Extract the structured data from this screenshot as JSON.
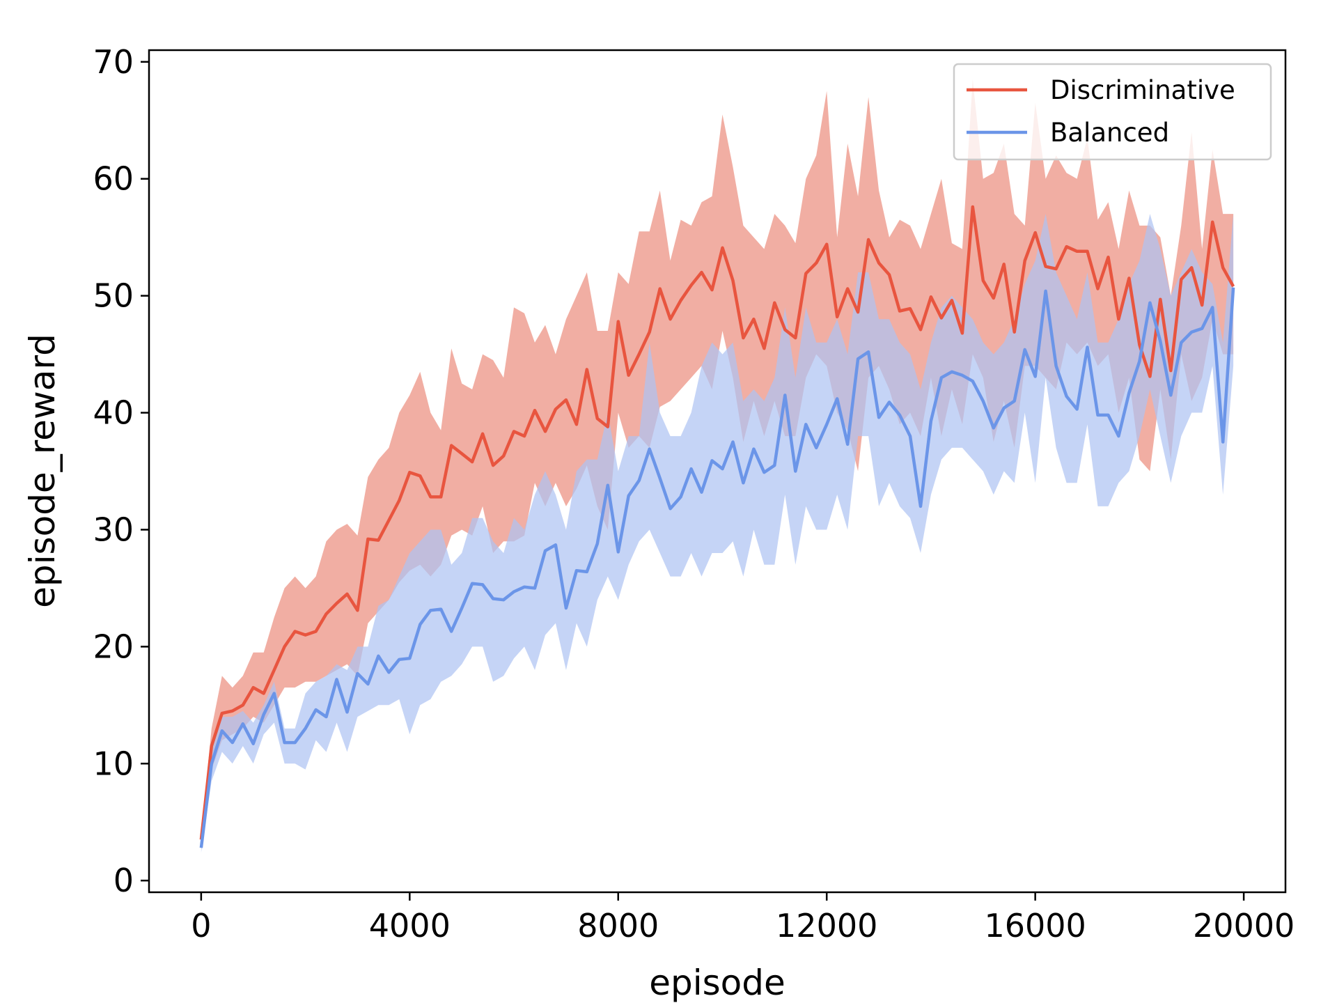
{
  "chart_data": {
    "type": "line",
    "title": "",
    "xlabel": "episode",
    "ylabel": "episode_reward",
    "xlim": [
      -1000,
      20800
    ],
    "ylim": [
      -1,
      71
    ],
    "xticks": [
      0,
      4000,
      8000,
      12000,
      16000,
      20000
    ],
    "yticks": [
      0,
      10,
      20,
      30,
      40,
      50,
      60,
      70
    ],
    "grid": false,
    "legend_position": "top-right",
    "x": [
      0,
      200,
      400,
      600,
      800,
      1000,
      1200,
      1400,
      1600,
      1800,
      2000,
      2200,
      2400,
      2600,
      2800,
      3000,
      3200,
      3400,
      3600,
      3800,
      4000,
      4200,
      4400,
      4600,
      4800,
      5000,
      5200,
      5400,
      5600,
      5800,
      6000,
      6200,
      6400,
      6600,
      6800,
      7000,
      7200,
      7400,
      7600,
      7800,
      8000,
      8200,
      8400,
      8600,
      8800,
      9000,
      9200,
      9400,
      9600,
      9800,
      10000,
      10200,
      10400,
      10600,
      10800,
      11000,
      11200,
      11400,
      11600,
      11800,
      12000,
      12200,
      12400,
      12600,
      12800,
      13000,
      13200,
      13400,
      13600,
      13800,
      14000,
      14200,
      14400,
      14600,
      14800,
      15000,
      15200,
      15400,
      15600,
      15800,
      16000,
      16200,
      16400,
      16600,
      16800,
      17000,
      17200,
      17400,
      17600,
      17800,
      18000,
      18200,
      18400,
      18600,
      18800,
      19000,
      19200,
      19400,
      19600,
      19800
    ],
    "series": [
      {
        "name": "Discriminative",
        "color": "#e8553f",
        "band_color": "#eb8f7f",
        "values": [
          3.5,
          11.5,
          14.3,
          14.5,
          15.0,
          16.5,
          16.0,
          18.0,
          20.0,
          21.3,
          21.0,
          21.3,
          22.8,
          23.7,
          24.5,
          23.1,
          29.2,
          29.1,
          30.8,
          32.5,
          34.9,
          34.6,
          32.8,
          32.8,
          37.2,
          36.5,
          35.8,
          38.2,
          35.5,
          36.3,
          38.4,
          38.0,
          40.2,
          38.4,
          40.3,
          41.1,
          39.0,
          43.7,
          39.5,
          38.8,
          47.8,
          43.2,
          45.0,
          46.9,
          50.6,
          48.0,
          49.6,
          50.9,
          52.0,
          50.5,
          54.1,
          51.3,
          46.4,
          48.0,
          45.5,
          49.4,
          47.1,
          46.4,
          51.9,
          52.8,
          54.4,
          48.2,
          50.6,
          48.6,
          54.8,
          52.8,
          51.8,
          48.7,
          48.9,
          47.1,
          49.9,
          48.1,
          49.6,
          46.8,
          57.6,
          51.3,
          49.8,
          52.7,
          46.9,
          53.0,
          55.4,
          52.5,
          52.3,
          54.2,
          53.8,
          53.8,
          50.6,
          53.3,
          48.0,
          51.5,
          45.8,
          43.1,
          49.7,
          43.6,
          51.4,
          52.4,
          49.2,
          56.3,
          52.4,
          50.8
        ],
        "upper": [
          4,
          13,
          17.5,
          16.5,
          17.5,
          19.5,
          19.5,
          22.5,
          25,
          26,
          25,
          26,
          29,
          30,
          30.5,
          29.5,
          34.5,
          36,
          37,
          40,
          41.5,
          43.5,
          40,
          38.5,
          45.5,
          42.5,
          42,
          45,
          44.5,
          43,
          49,
          48.5,
          46,
          47.5,
          45,
          48,
          50,
          52,
          47,
          47,
          52,
          51,
          55.5,
          55.5,
          59,
          53,
          56.5,
          56,
          58,
          58.5,
          65.5,
          61,
          56,
          55,
          54,
          57,
          56,
          54.5,
          60,
          62,
          67.5,
          55,
          63,
          58.5,
          67,
          59,
          55,
          56.5,
          56,
          54,
          57,
          60,
          54.5,
          54,
          68.5,
          60,
          60.5,
          63,
          57,
          56,
          66.5,
          60,
          62,
          60.5,
          60,
          63.5,
          56.5,
          58,
          54,
          59,
          56,
          56,
          55,
          50,
          56,
          64,
          54,
          62.5,
          57,
          57
        ],
        "lower": [
          3,
          9.5,
          12,
          12.5,
          13,
          14,
          13.5,
          15,
          16.5,
          16.5,
          17,
          17,
          17.5,
          18,
          18.5,
          17.5,
          22,
          23,
          24,
          25.5,
          26.5,
          27,
          26,
          27,
          29.5,
          30,
          29.5,
          32,
          28,
          29,
          29,
          29.5,
          34,
          32,
          34,
          32,
          33.5,
          35.5,
          32,
          30,
          40,
          37,
          38,
          37,
          40.5,
          41,
          42,
          43,
          44,
          42,
          47,
          43,
          37.5,
          41,
          38,
          41,
          38,
          38,
          43,
          45,
          44,
          40,
          38.5,
          35,
          43,
          44,
          42,
          39,
          40,
          38,
          43,
          38,
          42,
          39,
          45,
          43,
          37.5,
          41,
          37,
          44,
          44,
          43,
          42,
          46,
          45,
          46,
          44,
          45,
          40,
          43,
          36,
          35,
          42,
          36,
          45,
          41,
          43,
          48,
          45,
          45
        ]
      },
      {
        "name": "Balanced",
        "color": "#6b95e8",
        "band_color": "#aec4f3",
        "values": [
          2.8,
          10.0,
          12.8,
          11.8,
          13.4,
          11.7,
          14.2,
          16.0,
          11.8,
          11.8,
          13.0,
          14.6,
          14.0,
          17.2,
          14.4,
          17.7,
          16.8,
          19.2,
          17.8,
          18.9,
          19.0,
          21.9,
          23.1,
          23.2,
          21.3,
          23.3,
          25.4,
          25.3,
          24.1,
          24.0,
          24.7,
          25.1,
          25.0,
          28.2,
          28.7,
          23.3,
          26.5,
          26.4,
          28.8,
          33.8,
          28.1,
          32.9,
          34.2,
          36.9,
          34.4,
          31.8,
          32.8,
          35.2,
          33.2,
          35.9,
          35.2,
          37.5,
          34.0,
          36.9,
          34.9,
          35.5,
          41.5,
          35.0,
          39.0,
          37.0,
          39.0,
          41.2,
          37.3,
          44.6,
          45.2,
          39.6,
          40.9,
          39.8,
          38.0,
          32.0,
          39.3,
          43.0,
          43.5,
          43.2,
          42.7,
          41.0,
          38.7,
          40.4,
          41.0,
          45.4,
          43.1,
          50.4,
          44.0,
          41.4,
          40.3,
          45.6,
          39.8,
          39.8,
          38.0,
          41.7,
          44.4,
          49.4,
          46.1,
          41.5,
          46.0,
          46.9,
          47.2,
          49.0,
          37.5,
          50.7
        ],
        "upper": [
          3.2,
          11.5,
          14,
          14,
          14.5,
          13.5,
          15,
          17,
          13,
          13,
          16,
          17,
          17.5,
          18.5,
          18,
          20,
          20,
          23.5,
          24,
          26,
          28,
          29,
          30,
          30,
          27,
          28,
          31,
          31,
          29,
          28,
          31,
          30,
          33,
          35,
          33,
          30,
          35,
          36,
          36,
          40,
          35,
          38,
          38,
          46,
          40,
          38,
          38,
          40,
          44,
          46,
          45,
          46,
          41,
          42,
          41,
          43,
          49,
          43,
          49,
          46,
          46,
          48,
          45,
          52,
          52,
          48,
          48,
          46,
          45,
          42,
          46,
          49,
          50,
          49,
          48,
          46,
          45,
          46,
          48,
          51,
          53,
          57,
          52,
          50,
          48,
          52,
          46,
          46,
          48,
          51,
          53,
          57,
          54,
          50,
          52,
          54,
          52,
          51,
          46,
          57
        ],
        "lower": [
          2.4,
          8.5,
          11,
          10,
          11.5,
          10,
          12.5,
          13.5,
          10,
          10,
          9.5,
          12,
          11,
          13.5,
          11,
          14,
          14.5,
          15,
          15,
          15.5,
          12.5,
          15,
          15.5,
          17,
          17.5,
          18.5,
          20,
          20,
          17,
          17.5,
          19,
          20,
          18,
          21,
          22,
          18,
          22,
          20,
          24,
          26,
          24,
          27,
          29,
          30,
          28,
          26,
          26,
          28,
          26,
          28,
          28,
          29,
          26,
          30,
          27,
          27,
          33,
          27,
          32,
          30,
          30,
          33,
          30,
          38,
          38,
          32,
          34,
          32,
          31,
          28,
          33,
          36,
          37,
          37,
          36,
          35,
          33,
          35,
          34,
          40,
          34,
          43,
          37,
          34,
          34,
          39,
          32,
          32,
          34,
          35,
          38,
          42,
          38,
          34,
          38,
          40,
          40,
          44,
          33,
          44
        ]
      }
    ]
  }
}
